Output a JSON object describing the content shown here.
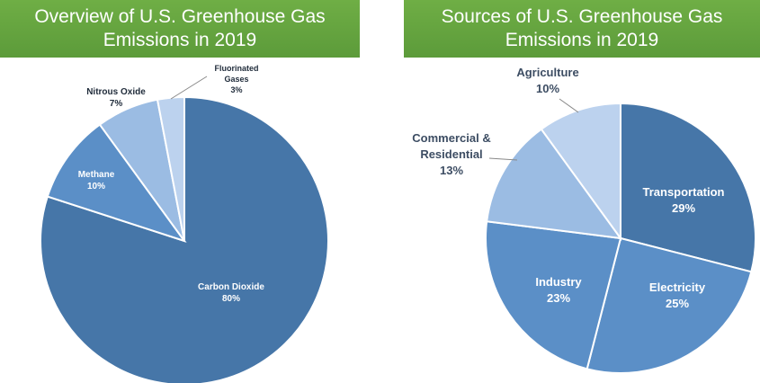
{
  "left_chart": {
    "title_line1": "Overview of U.S. Greenhouse Gas",
    "title_line2": "Emissions in 2019"
  },
  "right_chart": {
    "title_line1": "Sources of U.S. Greenhouse Gas",
    "title_line2": "Emissions in 2019"
  },
  "colors": {
    "banner": "#62a13d",
    "slice_dark": "#4676a8",
    "slice_mid": "#5b8fc7",
    "slice_light": "#9bbce3",
    "slice_lighter": "#bcd2ee"
  },
  "chart_data": [
    {
      "type": "pie",
      "title": "Overview of U.S. Greenhouse Gas Emissions in 2019",
      "slices": [
        {
          "name": "Carbon Dioxide",
          "value": 80,
          "pct_label": "80%"
        },
        {
          "name": "Methane",
          "value": 10,
          "pct_label": "10%"
        },
        {
          "name": "Nitrous Oxide",
          "value": 7,
          "pct_label": "7%"
        },
        {
          "name": "Fluorinated Gases",
          "value": 3,
          "pct_label": "3%"
        }
      ]
    },
    {
      "type": "pie",
      "title": "Sources of U.S. Greenhouse Gas Emissions in 2019",
      "slices": [
        {
          "name": "Transportation",
          "value": 29,
          "pct_label": "29%"
        },
        {
          "name": "Electricity",
          "value": 25,
          "pct_label": "25%"
        },
        {
          "name": "Industry",
          "value": 23,
          "pct_label": "23%"
        },
        {
          "name": "Commercial & Residential",
          "value": 13,
          "pct_label": "13%"
        },
        {
          "name": "Agriculture",
          "value": 10,
          "pct_label": "10%"
        }
      ]
    }
  ]
}
